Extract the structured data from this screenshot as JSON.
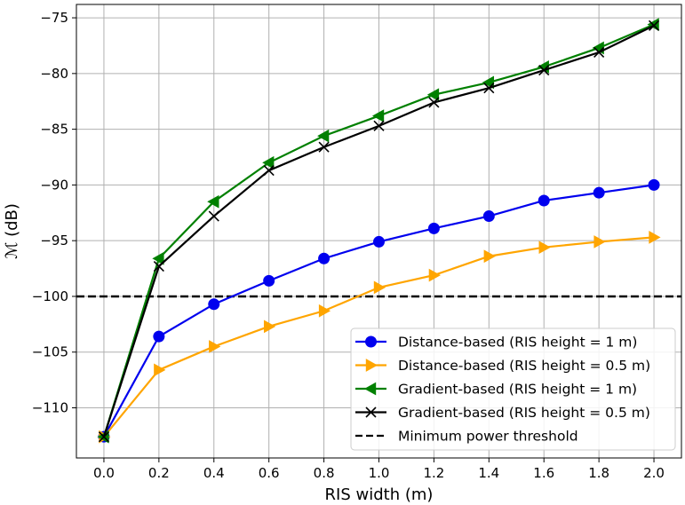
{
  "chart_data": {
    "type": "line",
    "xlabel": "RIS width (m)",
    "ylabel": "ℳ (dB)",
    "xlim": [
      -0.1,
      2.1
    ],
    "ylim": [
      -114.5,
      -73.8
    ],
    "grid": true,
    "legend_position": "bottom-right",
    "x_ticks": [
      "0.0",
      "0.2",
      "0.4",
      "0.6",
      "0.8",
      "1.0",
      "1.2",
      "1.4",
      "1.6",
      "1.8",
      "2.0"
    ],
    "y_ticks": [
      "−110",
      "−105",
      "−100",
      "−95",
      "−90",
      "−85",
      "−80",
      "−75"
    ],
    "x": [
      0.0,
      0.2,
      0.4,
      0.6,
      0.8,
      1.0,
      1.2,
      1.4,
      1.6,
      1.8,
      2.0
    ],
    "series": [
      {
        "name": "Distance-based (RIS height = 1 m)",
        "color": "#0000ee",
        "marker": "circle",
        "values": [
          -112.6,
          -103.6,
          -100.7,
          -98.6,
          -96.6,
          -95.1,
          -93.9,
          -92.8,
          -91.4,
          -90.7,
          -90.0
        ]
      },
      {
        "name": "Distance-based (RIS height = 0.5 m)",
        "color": "#ffa500",
        "marker": "triangle-right",
        "values": [
          -112.6,
          -106.6,
          -104.5,
          -102.7,
          -101.3,
          -99.2,
          -98.1,
          -96.4,
          -95.6,
          -95.1,
          -94.7
        ]
      },
      {
        "name": "Gradient-based (RIS height = 1 m)",
        "color": "#008000",
        "marker": "triangle-left",
        "values": [
          -112.6,
          -96.6,
          -91.5,
          -88.0,
          -85.6,
          -83.8,
          -81.9,
          -80.8,
          -79.4,
          -77.7,
          -75.6
        ]
      },
      {
        "name": "Gradient-based (RIS height = 0.5 m)",
        "color": "#000000",
        "marker": "x",
        "values": [
          -112.6,
          -97.3,
          -92.8,
          -88.7,
          -86.6,
          -84.7,
          -82.6,
          -81.3,
          -79.7,
          -78.1,
          -75.7
        ]
      }
    ],
    "threshold": {
      "name": "Minimum power threshold",
      "value": -100,
      "color": "#000000",
      "style": "dashed"
    }
  }
}
